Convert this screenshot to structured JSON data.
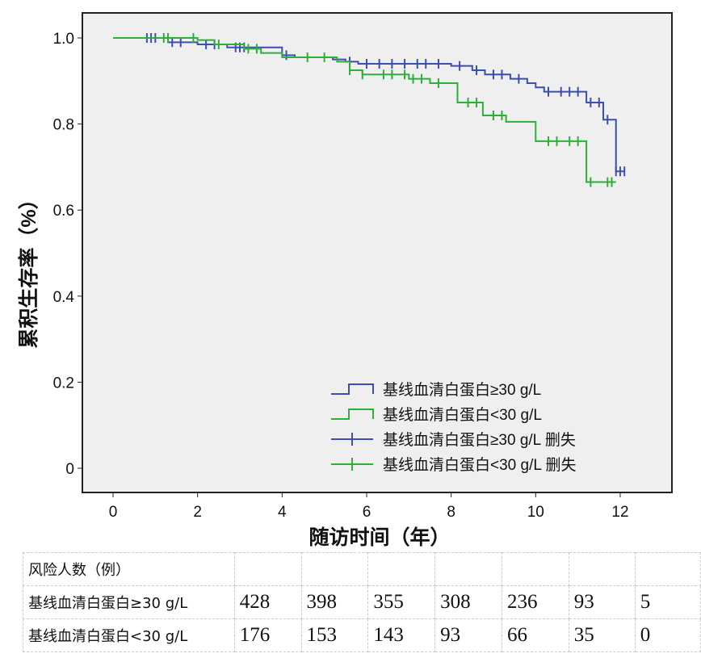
{
  "chart_data": {
    "type": "line",
    "subtype": "kaplan-meier",
    "xlabel": "随访时间（年）",
    "ylabel": "累积生存率（%）",
    "xlim": [
      0,
      12.5
    ],
    "ylim": [
      0,
      1.05
    ],
    "xticks": [
      "0",
      "2",
      "4",
      "6",
      "8",
      "10",
      "12"
    ],
    "yticks": [
      "0",
      "0.2",
      "0.4",
      "0.6",
      "0.8",
      "1.0"
    ],
    "legend_position": "bottom-right",
    "legend": [
      "基线血清白蛋白≥30 g/L",
      "基线血清白蛋白<30 g/L",
      "基线血清白蛋白≥30 g/L 删失",
      "基线血清白蛋白<30 g/L 删失"
    ],
    "series": [
      {
        "name": "基线血清白蛋白≥30 g/L",
        "color": "#3a4fb0",
        "steps": [
          [
            0,
            1
          ],
          [
            1.3,
            0.99
          ],
          [
            2.0,
            0.985
          ],
          [
            2.7,
            0.978
          ],
          [
            4.0,
            0.96
          ],
          [
            4.3,
            0.955
          ],
          [
            5.2,
            0.95
          ],
          [
            5.5,
            0.945
          ],
          [
            5.8,
            0.94
          ],
          [
            8.0,
            0.935
          ],
          [
            8.5,
            0.925
          ],
          [
            8.8,
            0.915
          ],
          [
            9.4,
            0.905
          ],
          [
            9.8,
            0.895
          ],
          [
            10.0,
            0.885
          ],
          [
            10.2,
            0.875
          ],
          [
            11.2,
            0.85
          ],
          [
            11.6,
            0.81
          ],
          [
            11.9,
            0.69
          ]
        ],
        "end": 12.1,
        "censored": [
          0.8,
          0.9,
          1.0,
          1.4,
          1.6,
          2.2,
          2.4,
          2.9,
          3.0,
          3.1,
          4.1,
          5.6,
          6.0,
          6.3,
          6.6,
          6.9,
          7.2,
          7.4,
          7.7,
          8.2,
          8.6,
          9.0,
          9.2,
          9.6,
          10.3,
          10.6,
          10.8,
          11.0,
          11.3,
          11.5,
          11.7,
          11.9,
          12.0,
          12.1
        ]
      },
      {
        "name": "基线血清白蛋白<30 g/L",
        "color": "#2fae3a",
        "steps": [
          [
            0,
            1
          ],
          [
            2.0,
            0.995
          ],
          [
            2.4,
            0.985
          ],
          [
            3.1,
            0.975
          ],
          [
            3.5,
            0.965
          ],
          [
            4.0,
            0.955
          ],
          [
            5.3,
            0.945
          ],
          [
            5.6,
            0.925
          ],
          [
            5.9,
            0.915
          ],
          [
            7.0,
            0.905
          ],
          [
            7.5,
            0.895
          ],
          [
            8.15,
            0.85
          ],
          [
            8.75,
            0.82
          ],
          [
            9.3,
            0.805
          ],
          [
            10.0,
            0.76
          ],
          [
            11.2,
            0.665
          ]
        ],
        "end": 11.9,
        "censored": [
          1.2,
          1.3,
          1.9,
          2.5,
          3.2,
          3.4,
          4.6,
          5.0,
          5.6,
          5.9,
          6.4,
          6.6,
          6.9,
          7.1,
          7.3,
          7.7,
          8.4,
          8.6,
          9.0,
          9.2,
          10.3,
          10.5,
          10.8,
          11.0,
          11.3,
          11.7,
          11.8
        ]
      }
    ]
  },
  "risk_table": {
    "header": "风险人数（例）",
    "rows": [
      {
        "label": "基线血清白蛋白≥30 g/L",
        "values": [
          "428",
          "398",
          "355",
          "308",
          "236",
          "93",
          "5"
        ]
      },
      {
        "label": "基线血清白蛋白<30 g/L",
        "values": [
          "176",
          "153",
          "143",
          "93",
          "66",
          "35",
          "0"
        ]
      }
    ]
  }
}
